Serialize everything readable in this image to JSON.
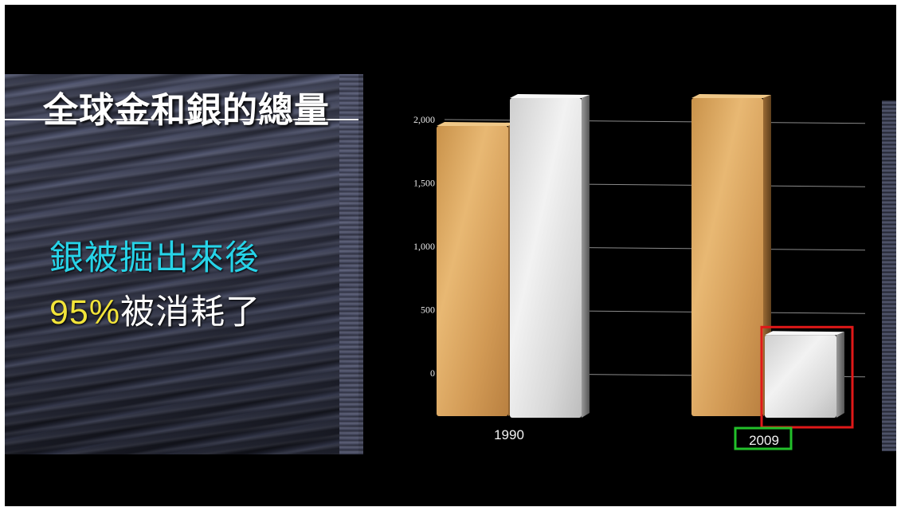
{
  "title": "全球金和銀的總量",
  "subtitle_line1": "銀被掘出來後",
  "subtitle_line2_highlight": "95%",
  "subtitle_line2_rest": "被消耗了",
  "colors": {
    "gold": "#d9a55a",
    "silver": "#e4e4e4",
    "highlight_cyan": "#27d3e8",
    "highlight_yellow": "#f2e43a",
    "annotation_red": "#e01818",
    "annotation_green": "#22c02a"
  },
  "chart_data": {
    "type": "bar",
    "categories": [
      "1990",
      "2009"
    ],
    "series": [
      {
        "values": [
          1950,
          2170
        ],
        "color": "gold"
      },
      {
        "values": [
          2170,
          300
        ],
        "color": "silver"
      }
    ],
    "yticks": [
      "0",
      "500",
      "1,000",
      "1,500",
      "2,000"
    ],
    "ytick_values": [
      0,
      500,
      1000,
      1500,
      2000
    ],
    "ylim": [
      0,
      2200
    ],
    "grid": true,
    "annotations": [
      {
        "type": "box",
        "target": "2009 silver bar",
        "color": "annotation_red"
      },
      {
        "type": "box",
        "target": "2009 category label",
        "color": "annotation_green"
      }
    ]
  }
}
